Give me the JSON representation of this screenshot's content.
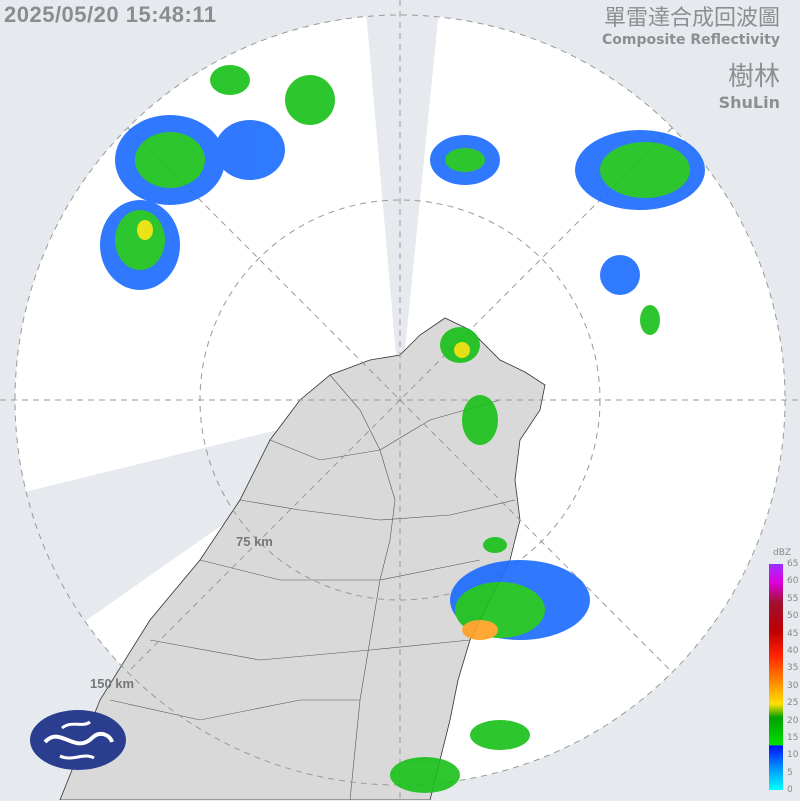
{
  "timestamp": "2025/05/20 15:48:11",
  "title": {
    "zh": "單雷達合成回波圖",
    "en": "Composite Reflectivity"
  },
  "station": {
    "zh": "樹林",
    "en": "ShuLin"
  },
  "range_rings": [
    "75 km",
    "150 km"
  ],
  "legend": {
    "unit": "dBZ",
    "ticks": [
      "65",
      "60",
      "55",
      "50",
      "45",
      "40",
      "35",
      "30",
      "25",
      "20",
      "15",
      "10",
      "5",
      "0"
    ]
  },
  "logo": {
    "text": "CWA"
  },
  "colors": {
    "background": "#e6eaee",
    "coverage": "#ffffff",
    "land": "#d9d9d9",
    "text": "#8a8d90"
  }
}
